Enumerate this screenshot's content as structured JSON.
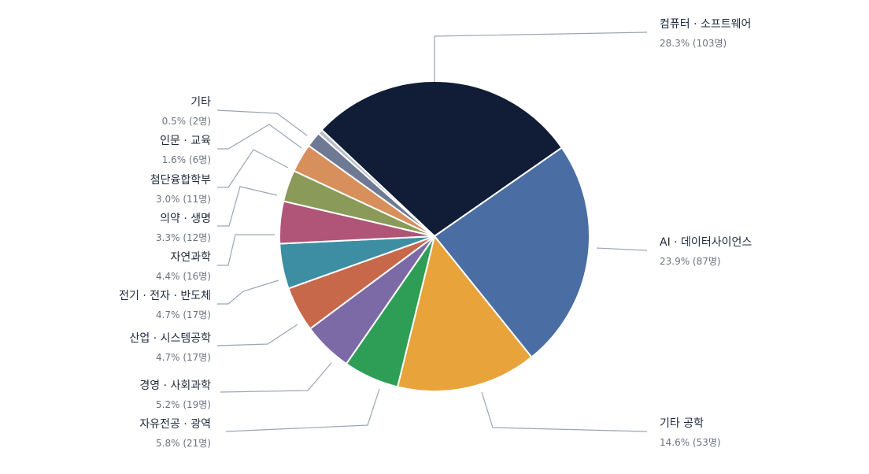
{
  "chart_data": {
    "type": "pie",
    "title": "",
    "legend": "none",
    "slices": [
      {
        "label": "컴퓨터 · 소프트웨어",
        "percent": 28.3,
        "count": 103,
        "value_text": "28.3%  (103명)",
        "color": "#111c36"
      },
      {
        "label": "AI · 데이터사이언스",
        "percent": 23.9,
        "count": 87,
        "value_text": "23.9%  (87명)",
        "color": "#4a6ea3"
      },
      {
        "label": "기타 공학",
        "percent": 14.6,
        "count": 53,
        "value_text": "14.6%  (53명)",
        "color": "#e8a33b"
      },
      {
        "label": "자유전공 · 광역",
        "percent": 5.8,
        "count": 21,
        "value_text": "5.8%  (21명)",
        "color": "#2e9e57"
      },
      {
        "label": "경영 · 사회과학",
        "percent": 5.2,
        "count": 19,
        "value_text": "5.2%  (19명)",
        "color": "#7b6aa6"
      },
      {
        "label": "산업 · 시스템공학",
        "percent": 4.7,
        "count": 17,
        "value_text": "4.7%  (17명)",
        "color": "#c8684a"
      },
      {
        "label": "전기 · 전자 · 반도체",
        "percent": 4.7,
        "count": 17,
        "value_text": "4.7%  (17명)",
        "color": "#3d8ea3"
      },
      {
        "label": "자연과학",
        "percent": 4.4,
        "count": 16,
        "value_text": "4.4%  (16명)",
        "color": "#b05578"
      },
      {
        "label": "의약 · 생명",
        "percent": 3.3,
        "count": 12,
        "value_text": "3.3%  (12명)",
        "color": "#8a9a58"
      },
      {
        "label": "첨단융합학부",
        "percent": 3.0,
        "count": 11,
        "value_text": "3.0%  (11명)",
        "color": "#d78f5c"
      },
      {
        "label": "인문 · 교육",
        "percent": 1.6,
        "count": 6,
        "value_text": "1.6%  (6명)",
        "color": "#6e7a94"
      },
      {
        "label": "기타",
        "percent": 0.5,
        "count": 2,
        "value_text": "0.5%  (2명)",
        "color": "#b8bec8"
      }
    ]
  }
}
